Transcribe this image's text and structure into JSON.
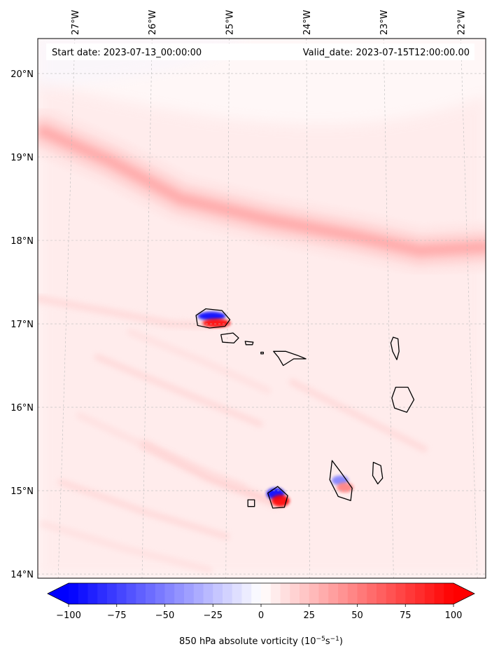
{
  "header": {
    "start_date": "Start date: 2023-07-13_00:00:00",
    "valid_date": "Valid_date: 2023-07-15T12:00:00.00"
  },
  "map": {
    "projection": "lat-lon",
    "lon_range": [
      -27.35,
      -21.8
    ],
    "lat_range": [
      13.95,
      20.42
    ],
    "lon_ticks": [
      {
        "value": -27,
        "label": "27°W"
      },
      {
        "value": -26,
        "label": "26°W"
      },
      {
        "value": -25,
        "label": "25°W"
      },
      {
        "value": -24,
        "label": "24°W"
      },
      {
        "value": -23,
        "label": "23°W"
      },
      {
        "value": -22,
        "label": "22°W"
      }
    ],
    "lat_ticks": [
      {
        "value": 20,
        "label": "20°N"
      },
      {
        "value": 19,
        "label": "19°N"
      },
      {
        "value": 18,
        "label": "18°N"
      },
      {
        "value": 17,
        "label": "17°N"
      },
      {
        "value": 16,
        "label": "16°N"
      },
      {
        "value": 15,
        "label": "15°N"
      },
      {
        "value": 14,
        "label": "14°N"
      }
    ],
    "islands": [
      {
        "name": "Santo Antão",
        "lon": -25.17,
        "lat": 17.05
      },
      {
        "name": "São Vicente",
        "lon": -24.98,
        "lat": 16.83
      },
      {
        "name": "Santa Luzia",
        "lon": -24.73,
        "lat": 16.77
      },
      {
        "name": "Branco",
        "lon": -24.57,
        "lat": 16.65
      },
      {
        "name": "São Nicolau",
        "lon": -24.23,
        "lat": 16.6
      },
      {
        "name": "Sal",
        "lon": -22.93,
        "lat": 16.72
      },
      {
        "name": "Boa Vista",
        "lon": -22.83,
        "lat": 16.09
      },
      {
        "name": "Maio",
        "lon": -23.17,
        "lat": 15.2
      },
      {
        "name": "Santiago",
        "lon": -23.6,
        "lat": 15.08
      },
      {
        "name": "Fogo",
        "lon": -24.38,
        "lat": 14.92
      },
      {
        "name": "Brava",
        "lon": -24.7,
        "lat": 14.85
      }
    ],
    "vorticity_features": [
      {
        "name": "shear-band-north",
        "peak": 35,
        "points": [
          [
            -27.35,
            19.3
          ],
          [
            -26.5,
            18.95
          ],
          [
            -25.6,
            18.5
          ],
          [
            -24.5,
            18.25
          ],
          [
            -23.4,
            18.05
          ],
          [
            -22.6,
            17.88
          ],
          [
            -21.8,
            17.92
          ]
        ]
      },
      {
        "name": "lee-wake-santo-antao",
        "peak": 15,
        "points": [
          [
            -27.35,
            17.3
          ],
          [
            -26.5,
            17.15
          ],
          [
            -25.7,
            17.0
          ],
          [
            -25.2,
            16.98
          ]
        ]
      },
      {
        "name": "lee-wake-fogo",
        "peak": 20,
        "points": [
          [
            -26.0,
            15.55
          ],
          [
            -25.2,
            15.15
          ],
          [
            -24.4,
            14.85
          ]
        ]
      }
    ]
  },
  "chart_data": {
    "type": "heatmap",
    "title": "850 hPa absolute vorticity",
    "variable": "850 hPa absolute vorticity",
    "units": "10^-5 s^-1",
    "colormap": "bwr",
    "clim": [
      -100,
      100
    ],
    "extend": "both",
    "cbar_ticks": [
      -100,
      -75,
      -50,
      -25,
      0,
      25,
      50,
      75,
      100
    ],
    "cbar_tick_labels": [
      "−100",
      "−75",
      "−50",
      "−25",
      "0",
      "25",
      "50",
      "75",
      "100"
    ],
    "cbar_levels": 40,
    "cbar_label_main": "850 hPa absolute vorticity (10",
    "cbar_label_sup1": "−5",
    "cbar_label_mid": "s",
    "cbar_label_sup2": "−1",
    "cbar_label_end": ")",
    "dipoles": [
      {
        "island": "Santo Antão",
        "positive_max": 100,
        "negative_min": -100
      },
      {
        "island": "Fogo",
        "positive_max": 100,
        "negative_min": -100
      },
      {
        "island": "Santiago",
        "positive_max": 50,
        "negative_min": -60
      }
    ]
  },
  "colors": {
    "negative": "#0000ff",
    "zero": "#ffffff",
    "positive": "#ff0000",
    "gridline": "#bbbbbb",
    "coastline": "#000000"
  }
}
